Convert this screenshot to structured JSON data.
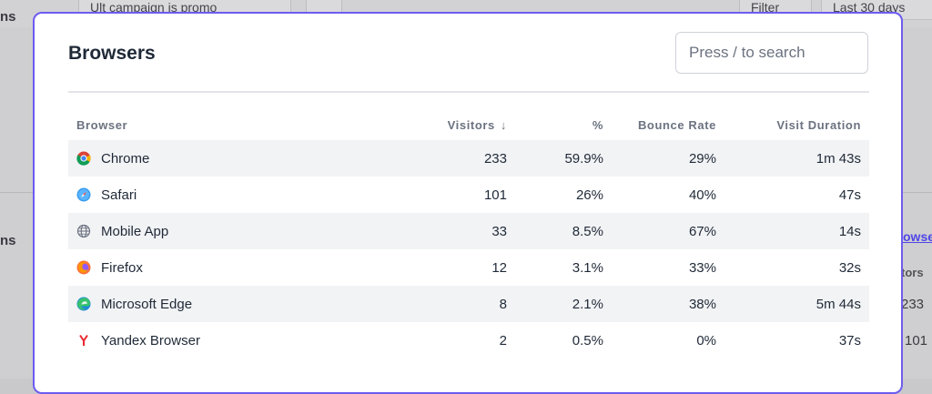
{
  "background": {
    "top_pills": [
      "Ult campaign is promo",
      "Filter",
      "Last 30 days"
    ],
    "left_fragments": [
      "ns",
      "ns"
    ],
    "right_fragments": [
      "owse",
      "tors",
      "233",
      "101"
    ]
  },
  "modal": {
    "title": "Browsers",
    "search": {
      "placeholder": "Press / to search",
      "value": ""
    },
    "columns": {
      "browser": "Browser",
      "visitors": "Visitors",
      "percent": "%",
      "bounce_rate": "Bounce Rate",
      "visit_duration": "Visit Duration"
    },
    "rows": [
      {
        "name": "Chrome",
        "icon": "chrome-icon",
        "visitors": "233",
        "percent": "59.9%",
        "bounce_rate": "29%",
        "visit_duration": "1m 43s"
      },
      {
        "name": "Safari",
        "icon": "safari-icon",
        "visitors": "101",
        "percent": "26%",
        "bounce_rate": "40%",
        "visit_duration": "47s"
      },
      {
        "name": "Mobile App",
        "icon": "globe-icon",
        "visitors": "33",
        "percent": "8.5%",
        "bounce_rate": "67%",
        "visit_duration": "14s"
      },
      {
        "name": "Firefox",
        "icon": "firefox-icon",
        "visitors": "12",
        "percent": "3.1%",
        "bounce_rate": "33%",
        "visit_duration": "32s"
      },
      {
        "name": "Microsoft Edge",
        "icon": "edge-icon",
        "visitors": "8",
        "percent": "2.1%",
        "bounce_rate": "38%",
        "visit_duration": "5m 44s"
      },
      {
        "name": "Yandex Browser",
        "icon": "yandex-icon",
        "visitors": "2",
        "percent": "0.5%",
        "bounce_rate": "0%",
        "visit_duration": "37s"
      }
    ]
  },
  "colors": {
    "accent": "#6d5cf0",
    "row_alt": "#f2f3f5"
  }
}
